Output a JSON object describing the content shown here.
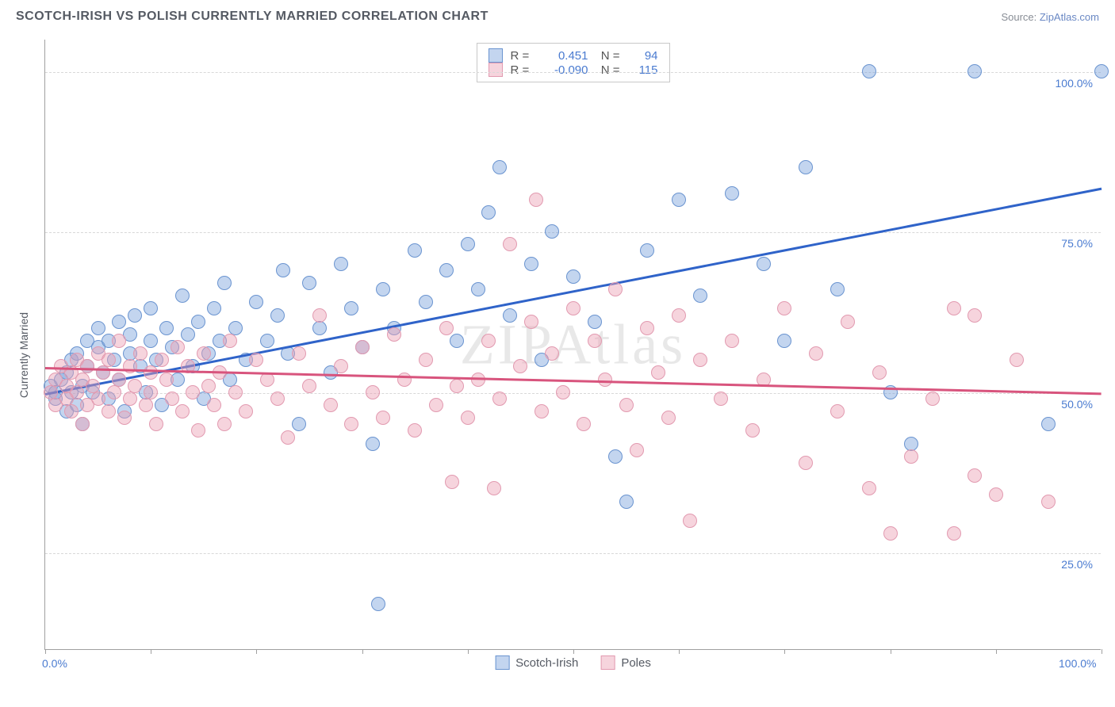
{
  "title": "SCOTCH-IRISH VS POLISH CURRENTLY MARRIED CORRELATION CHART",
  "source_label": "Source: ",
  "source_name": "ZipAtlas.com",
  "watermark": "ZIPAtlas",
  "yaxis_label": "Currently Married",
  "chart": {
    "type": "scatter",
    "xlim": [
      0,
      100
    ],
    "ylim": [
      10,
      105
    ],
    "x_ticks": [
      0,
      10,
      20,
      30,
      40,
      50,
      60,
      70,
      80,
      90,
      100
    ],
    "x_tick_labels": {
      "0": "0.0%",
      "100": "100.0%"
    },
    "y_gridlines": [
      25,
      50,
      75,
      100
    ],
    "y_tick_labels": {
      "25": "25.0%",
      "50": "50.0%",
      "75": "75.0%",
      "100": "100.0%"
    },
    "background": "#ffffff",
    "grid_color": "#d8d8d8",
    "axis_color": "#a0a0a0",
    "label_color": "#4a7bd0",
    "point_radius": 9,
    "series": [
      {
        "key": "scotch_irish",
        "name": "Scotch-Irish",
        "fill": "rgba(122,162,220,0.45)",
        "stroke": "#6a94d0",
        "trend_color": "#2f63c9",
        "r": 0.451,
        "n": 94,
        "trend": {
          "x1": 0,
          "y1": 50,
          "x2": 100,
          "y2": 82
        },
        "points": [
          [
            0.5,
            51
          ],
          [
            1,
            50
          ],
          [
            1,
            49
          ],
          [
            1.5,
            52
          ],
          [
            2,
            47
          ],
          [
            2,
            53
          ],
          [
            2.5,
            50
          ],
          [
            2.5,
            55
          ],
          [
            3,
            48
          ],
          [
            3,
            56
          ],
          [
            3.5,
            51
          ],
          [
            3.5,
            45
          ],
          [
            4,
            54
          ],
          [
            4,
            58
          ],
          [
            4.5,
            50
          ],
          [
            5,
            57
          ],
          [
            5,
            60
          ],
          [
            5.5,
            53
          ],
          [
            6,
            49
          ],
          [
            6,
            58
          ],
          [
            6.5,
            55
          ],
          [
            7,
            61
          ],
          [
            7,
            52
          ],
          [
            7.5,
            47
          ],
          [
            8,
            59
          ],
          [
            8,
            56
          ],
          [
            8.5,
            62
          ],
          [
            9,
            54
          ],
          [
            9.5,
            50
          ],
          [
            10,
            58
          ],
          [
            10,
            63
          ],
          [
            10.5,
            55
          ],
          [
            11,
            48
          ],
          [
            11.5,
            60
          ],
          [
            12,
            57
          ],
          [
            12.5,
            52
          ],
          [
            13,
            65
          ],
          [
            13.5,
            59
          ],
          [
            14,
            54
          ],
          [
            14.5,
            61
          ],
          [
            15,
            49
          ],
          [
            15.5,
            56
          ],
          [
            16,
            63
          ],
          [
            16.5,
            58
          ],
          [
            17,
            67
          ],
          [
            17.5,
            52
          ],
          [
            18,
            60
          ],
          [
            19,
            55
          ],
          [
            20,
            64
          ],
          [
            21,
            58
          ],
          [
            22,
            62
          ],
          [
            22.5,
            69
          ],
          [
            23,
            56
          ],
          [
            24,
            45
          ],
          [
            25,
            67
          ],
          [
            26,
            60
          ],
          [
            27,
            53
          ],
          [
            28,
            70
          ],
          [
            29,
            63
          ],
          [
            30,
            57
          ],
          [
            31,
            42
          ],
          [
            31.5,
            17
          ],
          [
            32,
            66
          ],
          [
            33,
            60
          ],
          [
            35,
            72
          ],
          [
            36,
            64
          ],
          [
            38,
            69
          ],
          [
            39,
            58
          ],
          [
            40,
            73
          ],
          [
            41,
            66
          ],
          [
            42,
            78
          ],
          [
            43,
            85
          ],
          [
            44,
            62
          ],
          [
            46,
            70
          ],
          [
            47,
            55
          ],
          [
            48,
            75
          ],
          [
            50,
            68
          ],
          [
            52,
            61
          ],
          [
            54,
            40
          ],
          [
            55,
            33
          ],
          [
            57,
            72
          ],
          [
            60,
            80
          ],
          [
            62,
            65
          ],
          [
            65,
            81
          ],
          [
            68,
            70
          ],
          [
            70,
            58
          ],
          [
            72,
            85
          ],
          [
            75,
            66
          ],
          [
            78,
            100
          ],
          [
            80,
            50
          ],
          [
            82,
            42
          ],
          [
            88,
            100
          ],
          [
            95,
            45
          ],
          [
            100,
            100
          ]
        ]
      },
      {
        "key": "poles",
        "name": "Poles",
        "fill": "rgba(236,160,180,0.45)",
        "stroke": "#e29ab0",
        "trend_color": "#d8547d",
        "r": -0.09,
        "n": 115,
        "trend": {
          "x1": 0,
          "y1": 54,
          "x2": 100,
          "y2": 50
        },
        "points": [
          [
            0.5,
            50
          ],
          [
            1,
            52
          ],
          [
            1,
            48
          ],
          [
            1.5,
            54
          ],
          [
            2,
            51
          ],
          [
            2,
            49
          ],
          [
            2.5,
            53
          ],
          [
            2.5,
            47
          ],
          [
            3,
            55
          ],
          [
            3,
            50
          ],
          [
            3.5,
            52
          ],
          [
            3.5,
            45
          ],
          [
            4,
            54
          ],
          [
            4,
            48
          ],
          [
            4.5,
            51
          ],
          [
            5,
            56
          ],
          [
            5,
            49
          ],
          [
            5.5,
            53
          ],
          [
            6,
            47
          ],
          [
            6,
            55
          ],
          [
            6.5,
            50
          ],
          [
            7,
            52
          ],
          [
            7,
            58
          ],
          [
            7.5,
            46
          ],
          [
            8,
            54
          ],
          [
            8,
            49
          ],
          [
            8.5,
            51
          ],
          [
            9,
            56
          ],
          [
            9.5,
            48
          ],
          [
            10,
            53
          ],
          [
            10,
            50
          ],
          [
            10.5,
            45
          ],
          [
            11,
            55
          ],
          [
            11.5,
            52
          ],
          [
            12,
            49
          ],
          [
            12.5,
            57
          ],
          [
            13,
            47
          ],
          [
            13.5,
            54
          ],
          [
            14,
            50
          ],
          [
            14.5,
            44
          ],
          [
            15,
            56
          ],
          [
            15.5,
            51
          ],
          [
            16,
            48
          ],
          [
            16.5,
            53
          ],
          [
            17,
            45
          ],
          [
            17.5,
            58
          ],
          [
            18,
            50
          ],
          [
            19,
            47
          ],
          [
            20,
            55
          ],
          [
            21,
            52
          ],
          [
            22,
            49
          ],
          [
            23,
            43
          ],
          [
            24,
            56
          ],
          [
            25,
            51
          ],
          [
            26,
            62
          ],
          [
            27,
            48
          ],
          [
            28,
            54
          ],
          [
            29,
            45
          ],
          [
            30,
            57
          ],
          [
            31,
            50
          ],
          [
            32,
            46
          ],
          [
            33,
            59
          ],
          [
            34,
            52
          ],
          [
            35,
            44
          ],
          [
            36,
            55
          ],
          [
            37,
            48
          ],
          [
            38,
            60
          ],
          [
            38.5,
            36
          ],
          [
            39,
            51
          ],
          [
            40,
            46
          ],
          [
            41,
            52
          ],
          [
            42,
            58
          ],
          [
            42.5,
            35
          ],
          [
            43,
            49
          ],
          [
            44,
            73
          ],
          [
            45,
            54
          ],
          [
            46,
            61
          ],
          [
            46.5,
            80
          ],
          [
            47,
            47
          ],
          [
            48,
            56
          ],
          [
            49,
            50
          ],
          [
            50,
            63
          ],
          [
            51,
            45
          ],
          [
            52,
            58
          ],
          [
            53,
            52
          ],
          [
            54,
            66
          ],
          [
            55,
            48
          ],
          [
            56,
            41
          ],
          [
            57,
            60
          ],
          [
            58,
            53
          ],
          [
            59,
            46
          ],
          [
            60,
            62
          ],
          [
            61,
            30
          ],
          [
            62,
            55
          ],
          [
            64,
            49
          ],
          [
            65,
            58
          ],
          [
            67,
            44
          ],
          [
            68,
            52
          ],
          [
            70,
            63
          ],
          [
            72,
            39
          ],
          [
            73,
            56
          ],
          [
            75,
            47
          ],
          [
            76,
            61
          ],
          [
            78,
            35
          ],
          [
            79,
            53
          ],
          [
            80,
            28
          ],
          [
            82,
            40
          ],
          [
            84,
            49
          ],
          [
            86,
            63
          ],
          [
            86,
            28
          ],
          [
            88,
            37
          ],
          [
            90,
            34
          ],
          [
            92,
            55
          ],
          [
            95,
            33
          ],
          [
            88,
            62
          ]
        ]
      }
    ]
  },
  "legend_bottom": [
    {
      "label": "Scotch-Irish",
      "series": "scotch_irish"
    },
    {
      "label": "Poles",
      "series": "poles"
    }
  ]
}
